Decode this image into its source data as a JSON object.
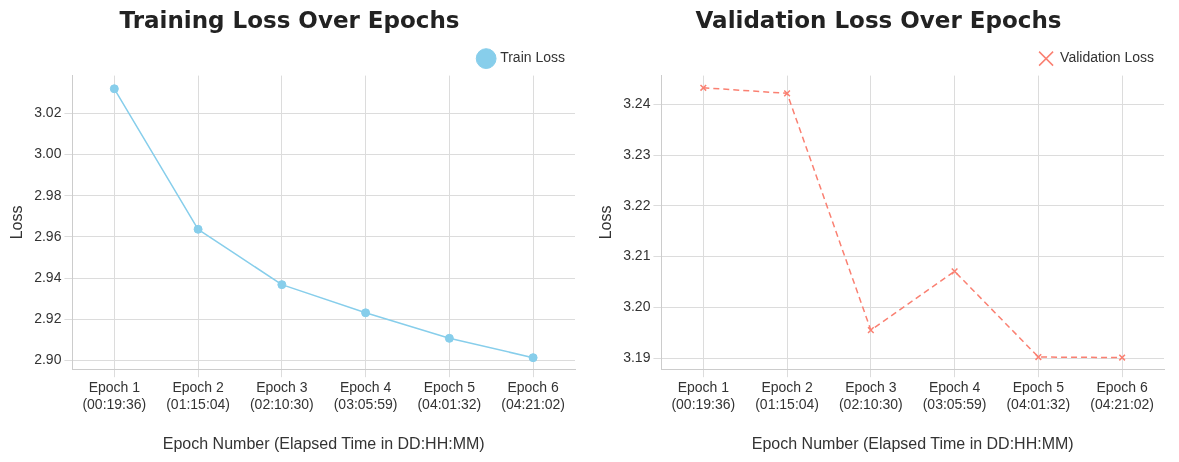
{
  "chart_data": [
    {
      "type": "line",
      "title": "Training Loss Over Epochs",
      "xlabel": "Epoch Number (Elapsed Time in DD:HH:MM)",
      "ylabel": "Loss",
      "categories": [
        "Epoch 1\n(00:19:36)",
        "Epoch 2\n(01:15:04)",
        "Epoch 3\n(02:10:30)",
        "Epoch 4\n(03:05:59)",
        "Epoch 5\n(04:01:32)",
        "Epoch 6\n(04:21:02)"
      ],
      "series": [
        {
          "name": "Train Loss",
          "color": "#87ceeb",
          "values": [
            3.032,
            2.9637,
            2.9368,
            2.9231,
            2.9107,
            2.9013
          ],
          "marker": "circle",
          "line_style": "solid"
        }
      ],
      "ylim": [
        2.8957,
        3.0384
      ],
      "yticks": [
        {
          "value": 2.9,
          "label": "2.90"
        },
        2.92,
        2.94,
        2.96,
        2.98,
        {
          "value": 3.0,
          "label": "3.00"
        },
        3.02
      ],
      "grid": true,
      "legend": "top right"
    },
    {
      "type": "line",
      "title": "Validation Loss Over Epochs",
      "xlabel": "Epoch Number (Elapsed Time in DD:HH:MM)",
      "ylabel": "Loss",
      "categories": [
        "Epoch 1\n(00:19:36)",
        "Epoch 2\n(01:15:04)",
        "Epoch 3\n(02:10:30)",
        "Epoch 4\n(03:05:59)",
        "Epoch 5\n(04:01:32)",
        "Epoch 6\n(04:21:02)"
      ],
      "series": [
        {
          "name": "Validation Loss",
          "color": "#fa8072",
          "values": [
            3.2433,
            3.2422,
            3.1955,
            3.2071,
            3.1902,
            3.1901
          ],
          "marker": "cross",
          "line_style": "dashed"
        }
      ],
      "ylim": [
        3.1878,
        3.2457
      ],
      "yticks": [
        3.19,
        {
          "value": 3.2,
          "label": "3.20"
        },
        3.21,
        3.22,
        3.23,
        3.24
      ],
      "grid": true,
      "legend": "top right"
    }
  ]
}
